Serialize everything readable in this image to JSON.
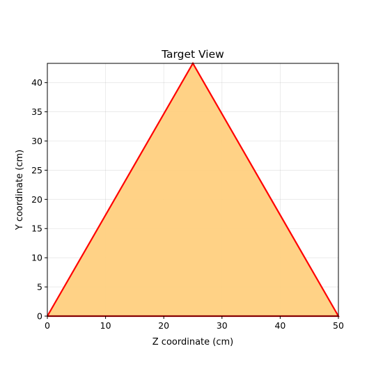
{
  "chart_data": {
    "type": "area",
    "title": "Target View",
    "xlabel": "Z coordinate (cm)",
    "ylabel": "Y coordinate (cm)",
    "xlim": [
      0,
      50
    ],
    "ylim": [
      0,
      43.3
    ],
    "xticks": [
      0,
      10,
      20,
      30,
      40,
      50
    ],
    "yticks": [
      0,
      5,
      10,
      15,
      20,
      25,
      30,
      35,
      40
    ],
    "grid": true,
    "series": [
      {
        "x": [
          0,
          25,
          50,
          0
        ],
        "y": [
          0,
          43.3,
          0,
          0
        ],
        "fill_color": "#ffd080",
        "line_color": "#ff0000"
      }
    ]
  }
}
